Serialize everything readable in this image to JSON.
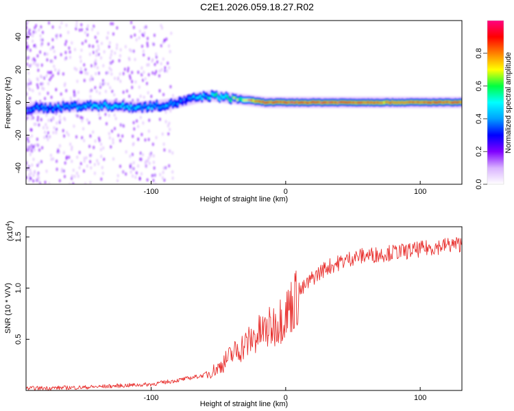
{
  "title": "C2E1.2026.059.18.27.R02",
  "chart_data": [
    {
      "type": "heatmap",
      "xlabel": "Height of straight line (km)",
      "ylabel": "Frequency (Hz)",
      "xlim": [
        -193,
        131
      ],
      "ylim": [
        -50,
        50
      ],
      "x_ticks": [
        -100,
        0,
        100
      ],
      "y_ticks": [
        -40,
        -20,
        0,
        20,
        40
      ],
      "colorbar": {
        "label": "Normalized spectral amplitude",
        "range": [
          0,
          1
        ],
        "ticks": [
          "0.0",
          "0.2",
          "0.4",
          "0.6",
          "0.8"
        ],
        "colors": [
          "#ffffff",
          "#d9b3ff",
          "#8000ff",
          "#0000ff",
          "#00a0ff",
          "#00ffff",
          "#00ff40",
          "#ffff00",
          "#ff8000",
          "#ff0000",
          "#ff0080"
        ]
      },
      "ridge": {
        "x": [
          -193,
          -170,
          -150,
          -130,
          -110,
          -95,
          -85,
          -75,
          -65,
          -55,
          -45,
          -35,
          -25,
          -15,
          0,
          20,
          40,
          60,
          80,
          100,
          131
        ],
        "frequency": [
          -4,
          -3,
          -2,
          -2,
          -3,
          -2,
          -1,
          1,
          3,
          4,
          3,
          2,
          1,
          0,
          0,
          0,
          0,
          0,
          0,
          0,
          0
        ],
        "amplitude": [
          0.35,
          0.4,
          0.45,
          0.5,
          0.45,
          0.4,
          0.4,
          0.35,
          0.45,
          0.5,
          0.55,
          0.6,
          0.8,
          0.85,
          0.9,
          0.9,
          0.9,
          0.85,
          0.8,
          0.85,
          0.9
        ]
      }
    },
    {
      "type": "line",
      "xlabel": "Height of straight line (km)",
      "ylabel": "SNR (10 * V/V)",
      "exponent_label": "(x10",
      "exponent_power": "4",
      "exponent_close": ")",
      "xlim": [
        -193,
        131
      ],
      "ylim": [
        0,
        1.6
      ],
      "x_ticks": [
        -100,
        0,
        100
      ],
      "y_ticks": [
        "0.5",
        "1.0",
        "1.5"
      ],
      "y_tick_values": [
        0.5,
        1.0,
        1.5
      ],
      "color": "#e8302e",
      "series": [
        {
          "x": [
            -193,
            -150,
            -100,
            -80,
            -60,
            -50,
            -40,
            -30,
            -20,
            -10,
            0,
            10,
            20,
            30,
            40,
            50,
            60,
            70,
            80,
            90,
            100,
            110,
            120,
            131
          ],
          "values": [
            0.02,
            0.03,
            0.06,
            0.1,
            0.15,
            0.22,
            0.35,
            0.45,
            0.55,
            0.62,
            0.75,
            0.95,
            1.1,
            1.2,
            1.25,
            1.3,
            1.32,
            1.33,
            1.35,
            1.36,
            1.38,
            1.4,
            1.42,
            1.43
          ]
        }
      ]
    }
  ]
}
